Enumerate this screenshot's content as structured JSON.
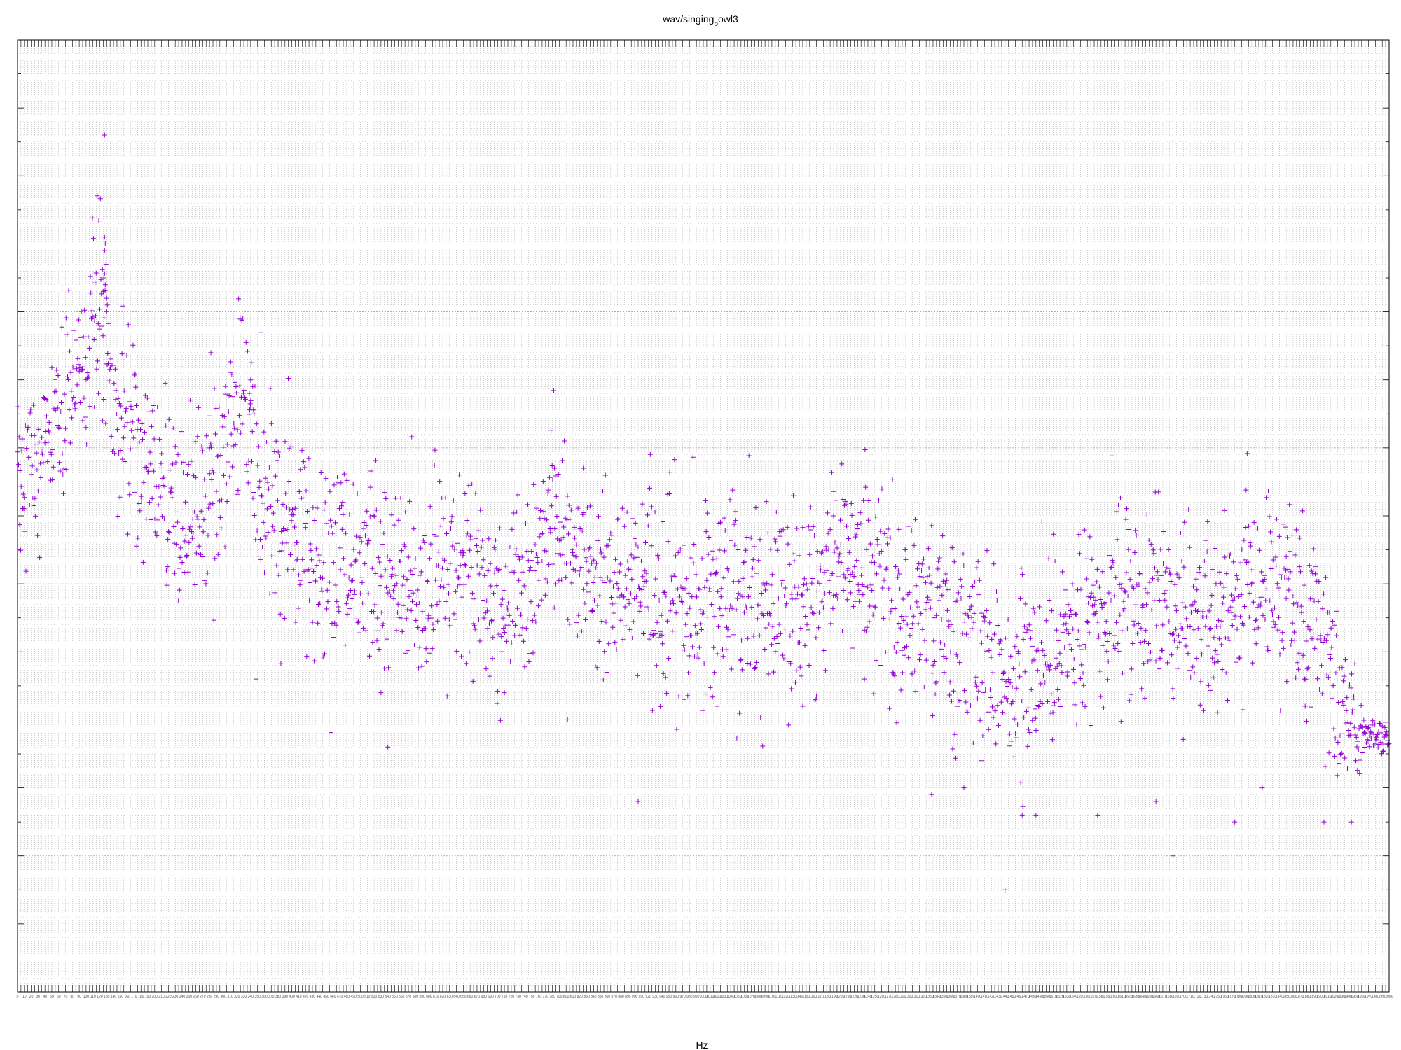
{
  "chart_data": {
    "type": "scatter",
    "title": "wav/singing_bowl3",
    "title_parts": {
      "main": "wav/singing",
      "sub": "b",
      "rest": "owl3"
    },
    "xlabel": "Hz",
    "ylabel": "",
    "xlim": [
      0,
      2000
    ],
    "ylim": [
      0,
      140
    ],
    "grid": true,
    "legend": "none",
    "marker": "plus",
    "series_color": "#9400d3",
    "grid_color": "#a0a0a0",
    "trend": [
      [
        0,
        76
      ],
      [
        50,
        80
      ],
      [
        100,
        92
      ],
      [
        120,
        106
      ],
      [
        140,
        84
      ],
      [
        200,
        78
      ],
      [
        250,
        68
      ],
      [
        310,
        80
      ],
      [
        330,
        90
      ],
      [
        350,
        72
      ],
      [
        400,
        68
      ],
      [
        460,
        60
      ],
      [
        520,
        64
      ],
      [
        580,
        58
      ],
      [
        660,
        64
      ],
      [
        700,
        56
      ],
      [
        760,
        62
      ],
      [
        780,
        70
      ],
      [
        820,
        62
      ],
      [
        900,
        60
      ],
      [
        960,
        56
      ],
      [
        1040,
        58
      ],
      [
        1100,
        56
      ],
      [
        1180,
        58
      ],
      [
        1200,
        66
      ],
      [
        1280,
        58
      ],
      [
        1340,
        56
      ],
      [
        1400,
        52
      ],
      [
        1450,
        46
      ],
      [
        1500,
        50
      ],
      [
        1560,
        56
      ],
      [
        1620,
        58
      ],
      [
        1680,
        56
      ],
      [
        1740,
        54
      ],
      [
        1800,
        60
      ],
      [
        1850,
        58
      ],
      [
        1890,
        54
      ],
      [
        1930,
        44
      ],
      [
        1960,
        38
      ],
      [
        2000,
        37
      ]
    ],
    "peaks": [
      [
        127,
        126
      ],
      [
        127,
        111
      ],
      [
        128,
        110
      ],
      [
        127,
        109
      ],
      [
        129,
        107
      ],
      [
        126,
        105
      ],
      [
        128,
        104
      ],
      [
        125,
        103
      ],
      [
        130,
        102
      ],
      [
        131,
        101
      ],
      [
        355,
        97
      ],
      [
        282,
        94
      ],
      [
        340,
        90
      ],
      [
        343,
        89
      ],
      [
        338,
        88
      ],
      [
        118,
        88
      ],
      [
        112,
        86
      ],
      [
        124,
        84
      ],
      [
        95,
        84
      ],
      [
        100,
        83
      ],
      [
        340,
        86
      ],
      [
        345,
        85
      ],
      [
        280,
        80
      ],
      [
        783,
        77
      ],
      [
        825,
        77
      ],
      [
        1190,
        70
      ],
      [
        1285,
        68
      ],
      [
        1610,
        60
      ],
      [
        1850,
        64
      ]
    ],
    "outliers": [
      [
        540,
        36
      ],
      [
        905,
        28
      ],
      [
        1440,
        15
      ],
      [
        1685,
        20
      ],
      [
        1465,
        26
      ],
      [
        1485,
        26
      ],
      [
        1775,
        25
      ],
      [
        1905,
        25
      ],
      [
        1945,
        25
      ],
      [
        1333,
        29
      ],
      [
        1145,
        42
      ],
      [
        1020,
        42
      ],
      [
        972,
        43
      ],
      [
        802,
        40
      ],
      [
        710,
        44
      ],
      [
        530,
        44
      ],
      [
        1235,
        46
      ],
      [
        1660,
        28
      ],
      [
        1575,
        26
      ],
      [
        1380,
        30
      ],
      [
        1405,
        34
      ],
      [
        1815,
        30
      ]
    ],
    "n_points": 2600,
    "spread": 7
  }
}
